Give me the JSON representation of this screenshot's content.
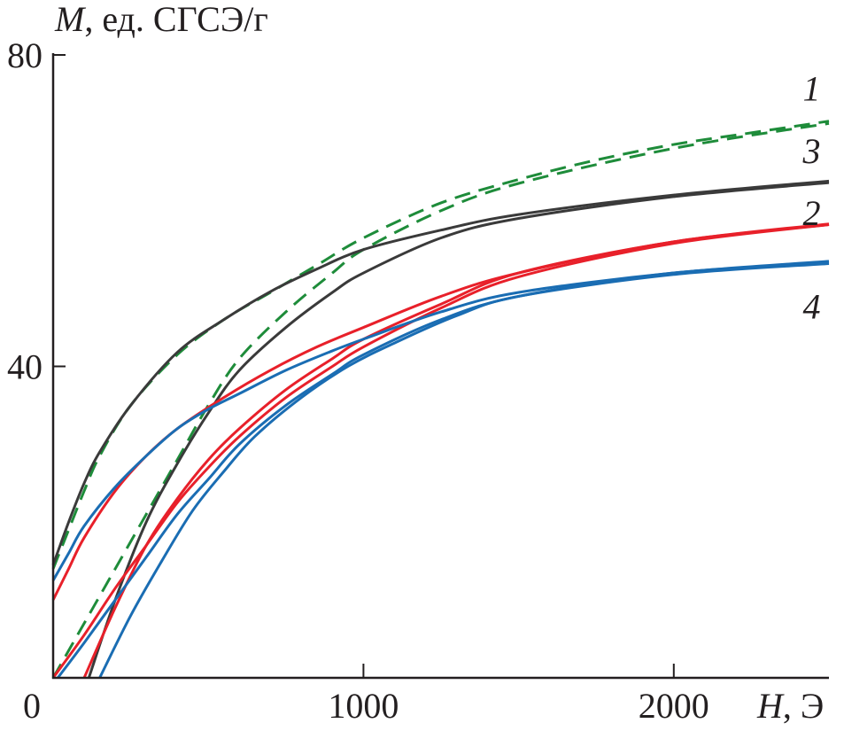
{
  "chart_data": {
    "type": "line",
    "title": "",
    "xlabel": {
      "symbol": "H",
      "unit": ", Э"
    },
    "ylabel": {
      "symbol": "M",
      "unit": ", ед. СГСЭ/г"
    },
    "xlim": [
      0,
      2500
    ],
    "ylim": [
      0,
      80
    ],
    "x_ticks": [
      {
        "value": 0,
        "label": "0"
      },
      {
        "value": 1000,
        "label": "1000"
      },
      {
        "value": 2000,
        "label": "2000"
      }
    ],
    "y_ticks": [
      {
        "value": 40,
        "label": "40"
      },
      {
        "value": 80,
        "label": "80"
      }
    ],
    "grid": false,
    "series": [
      {
        "label": "1",
        "color": "#1e8c3a",
        "dashed": true,
        "label_at": [
          2450,
          75.5
        ],
        "branches": [
          [
            [
              0,
              14
            ],
            [
              50,
              19
            ],
            [
              100,
              24
            ],
            [
              150,
              28.5
            ],
            [
              250,
              35
            ],
            [
              400,
              41.5
            ],
            [
              550,
              46
            ],
            [
              700,
              49.5
            ],
            [
              850,
              53
            ],
            [
              1000,
              56.5
            ],
            [
              1250,
              61
            ],
            [
              1500,
              64
            ],
            [
              1750,
              66.5
            ],
            [
              2000,
              68.5
            ],
            [
              2250,
              70
            ],
            [
              2500,
              71.5
            ]
          ],
          [
            [
              0,
              0
            ],
            [
              100,
              7
            ],
            [
              200,
              14
            ],
            [
              300,
              21
            ],
            [
              400,
              28
            ],
            [
              500,
              35
            ],
            [
              600,
              41
            ],
            [
              750,
              47
            ],
            [
              900,
              52
            ],
            [
              1000,
              55
            ],
            [
              1250,
              60
            ],
            [
              1500,
              63.5
            ],
            [
              2000,
              68
            ],
            [
              2500,
              71.2
            ]
          ]
        ]
      },
      {
        "label": "3",
        "color": "#3a3a3a",
        "dashed": false,
        "label_at": [
          2450,
          67.5
        ],
        "branches": [
          [
            [
              0,
              14.5
            ],
            [
              50,
              20
            ],
            [
              100,
              25
            ],
            [
              150,
              29
            ],
            [
              250,
              35
            ],
            [
              400,
              41.8
            ],
            [
              550,
              46
            ],
            [
              700,
              49.6
            ],
            [
              850,
              52.5
            ],
            [
              1000,
              55
            ],
            [
              1250,
              57.5
            ],
            [
              1500,
              59.5
            ],
            [
              2000,
              62
            ],
            [
              2500,
              63.8
            ]
          ],
          [
            [
              115,
              0
            ],
            [
              200,
              10
            ],
            [
              300,
              20
            ],
            [
              400,
              27.5
            ],
            [
              500,
              34
            ],
            [
              600,
              39.5
            ],
            [
              750,
              45
            ],
            [
              900,
              49.5
            ],
            [
              1000,
              52
            ],
            [
              1250,
              56.5
            ],
            [
              1500,
              59
            ],
            [
              2000,
              61.8
            ],
            [
              2500,
              63.6
            ]
          ]
        ]
      },
      {
        "label": "2",
        "color": "#e8202a",
        "dashed": false,
        "label_at": [
          2450,
          59.5
        ],
        "branches": [
          [
            [
              0,
              10
            ],
            [
              50,
              14
            ],
            [
              100,
              18
            ],
            [
              200,
              24
            ],
            [
              300,
              28.5
            ],
            [
              400,
              32
            ],
            [
              550,
              36
            ],
            [
              700,
              39.5
            ],
            [
              850,
              42.5
            ],
            [
              1000,
              45
            ],
            [
              1250,
              49
            ],
            [
              1500,
              52
            ],
            [
              2000,
              56
            ],
            [
              2500,
              58.3
            ]
          ],
          [
            [
              0,
              0
            ],
            [
              100,
              5.5
            ],
            [
              200,
              11.5
            ],
            [
              300,
              17
            ],
            [
              400,
              22.5
            ],
            [
              500,
              27
            ],
            [
              600,
              31
            ],
            [
              750,
              36
            ],
            [
              900,
              40
            ],
            [
              1000,
              42.5
            ],
            [
              1250,
              47.5
            ],
            [
              1500,
              51.5
            ],
            [
              2000,
              55.8
            ],
            [
              2500,
              58.2
            ]
          ],
          [
            [
              100,
              0
            ],
            [
              200,
              9
            ],
            [
              300,
              17
            ],
            [
              400,
              23
            ],
            [
              500,
              28
            ],
            [
              600,
              32
            ],
            [
              750,
              37
            ],
            [
              900,
              41
            ],
            [
              1000,
              43.5
            ],
            [
              1250,
              48
            ],
            [
              1500,
              52
            ],
            [
              2000,
              56
            ],
            [
              2500,
              58.2
            ]
          ]
        ]
      },
      {
        "label": "4",
        "color": "#1a6db3",
        "dashed": false,
        "label_at": [
          2450,
          47.5
        ],
        "branches": [
          [
            [
              0,
              12.5
            ],
            [
              50,
              16
            ],
            [
              100,
              19.5
            ],
            [
              200,
              24.5
            ],
            [
              300,
              28.5
            ],
            [
              400,
              32
            ],
            [
              500,
              34.5
            ],
            [
              600,
              36.5
            ],
            [
              750,
              39.5
            ],
            [
              900,
              42
            ],
            [
              1000,
              43.5
            ],
            [
              1250,
              47
            ],
            [
              1500,
              49.5
            ],
            [
              2000,
              52
            ],
            [
              2500,
              53.5
            ]
          ],
          [
            [
              15,
              0
            ],
            [
              100,
              4.5
            ],
            [
              200,
              10
            ],
            [
              300,
              15.5
            ],
            [
              400,
              21
            ],
            [
              500,
              25.5
            ],
            [
              600,
              30
            ],
            [
              750,
              35
            ],
            [
              900,
              39
            ],
            [
              1000,
              41.5
            ],
            [
              1250,
              46
            ],
            [
              1500,
              49
            ],
            [
              2000,
              52
            ],
            [
              2500,
              53.3
            ]
          ],
          [
            [
              150,
              0
            ],
            [
              250,
              8
            ],
            [
              350,
              15
            ],
            [
              450,
              21.5
            ],
            [
              550,
              26.5
            ],
            [
              650,
              31
            ],
            [
              800,
              36
            ],
            [
              950,
              40
            ],
            [
              1100,
              43
            ],
            [
              1300,
              46.5
            ],
            [
              1500,
              49
            ],
            [
              2000,
              51.8
            ],
            [
              2500,
              53.2
            ]
          ]
        ]
      }
    ]
  }
}
